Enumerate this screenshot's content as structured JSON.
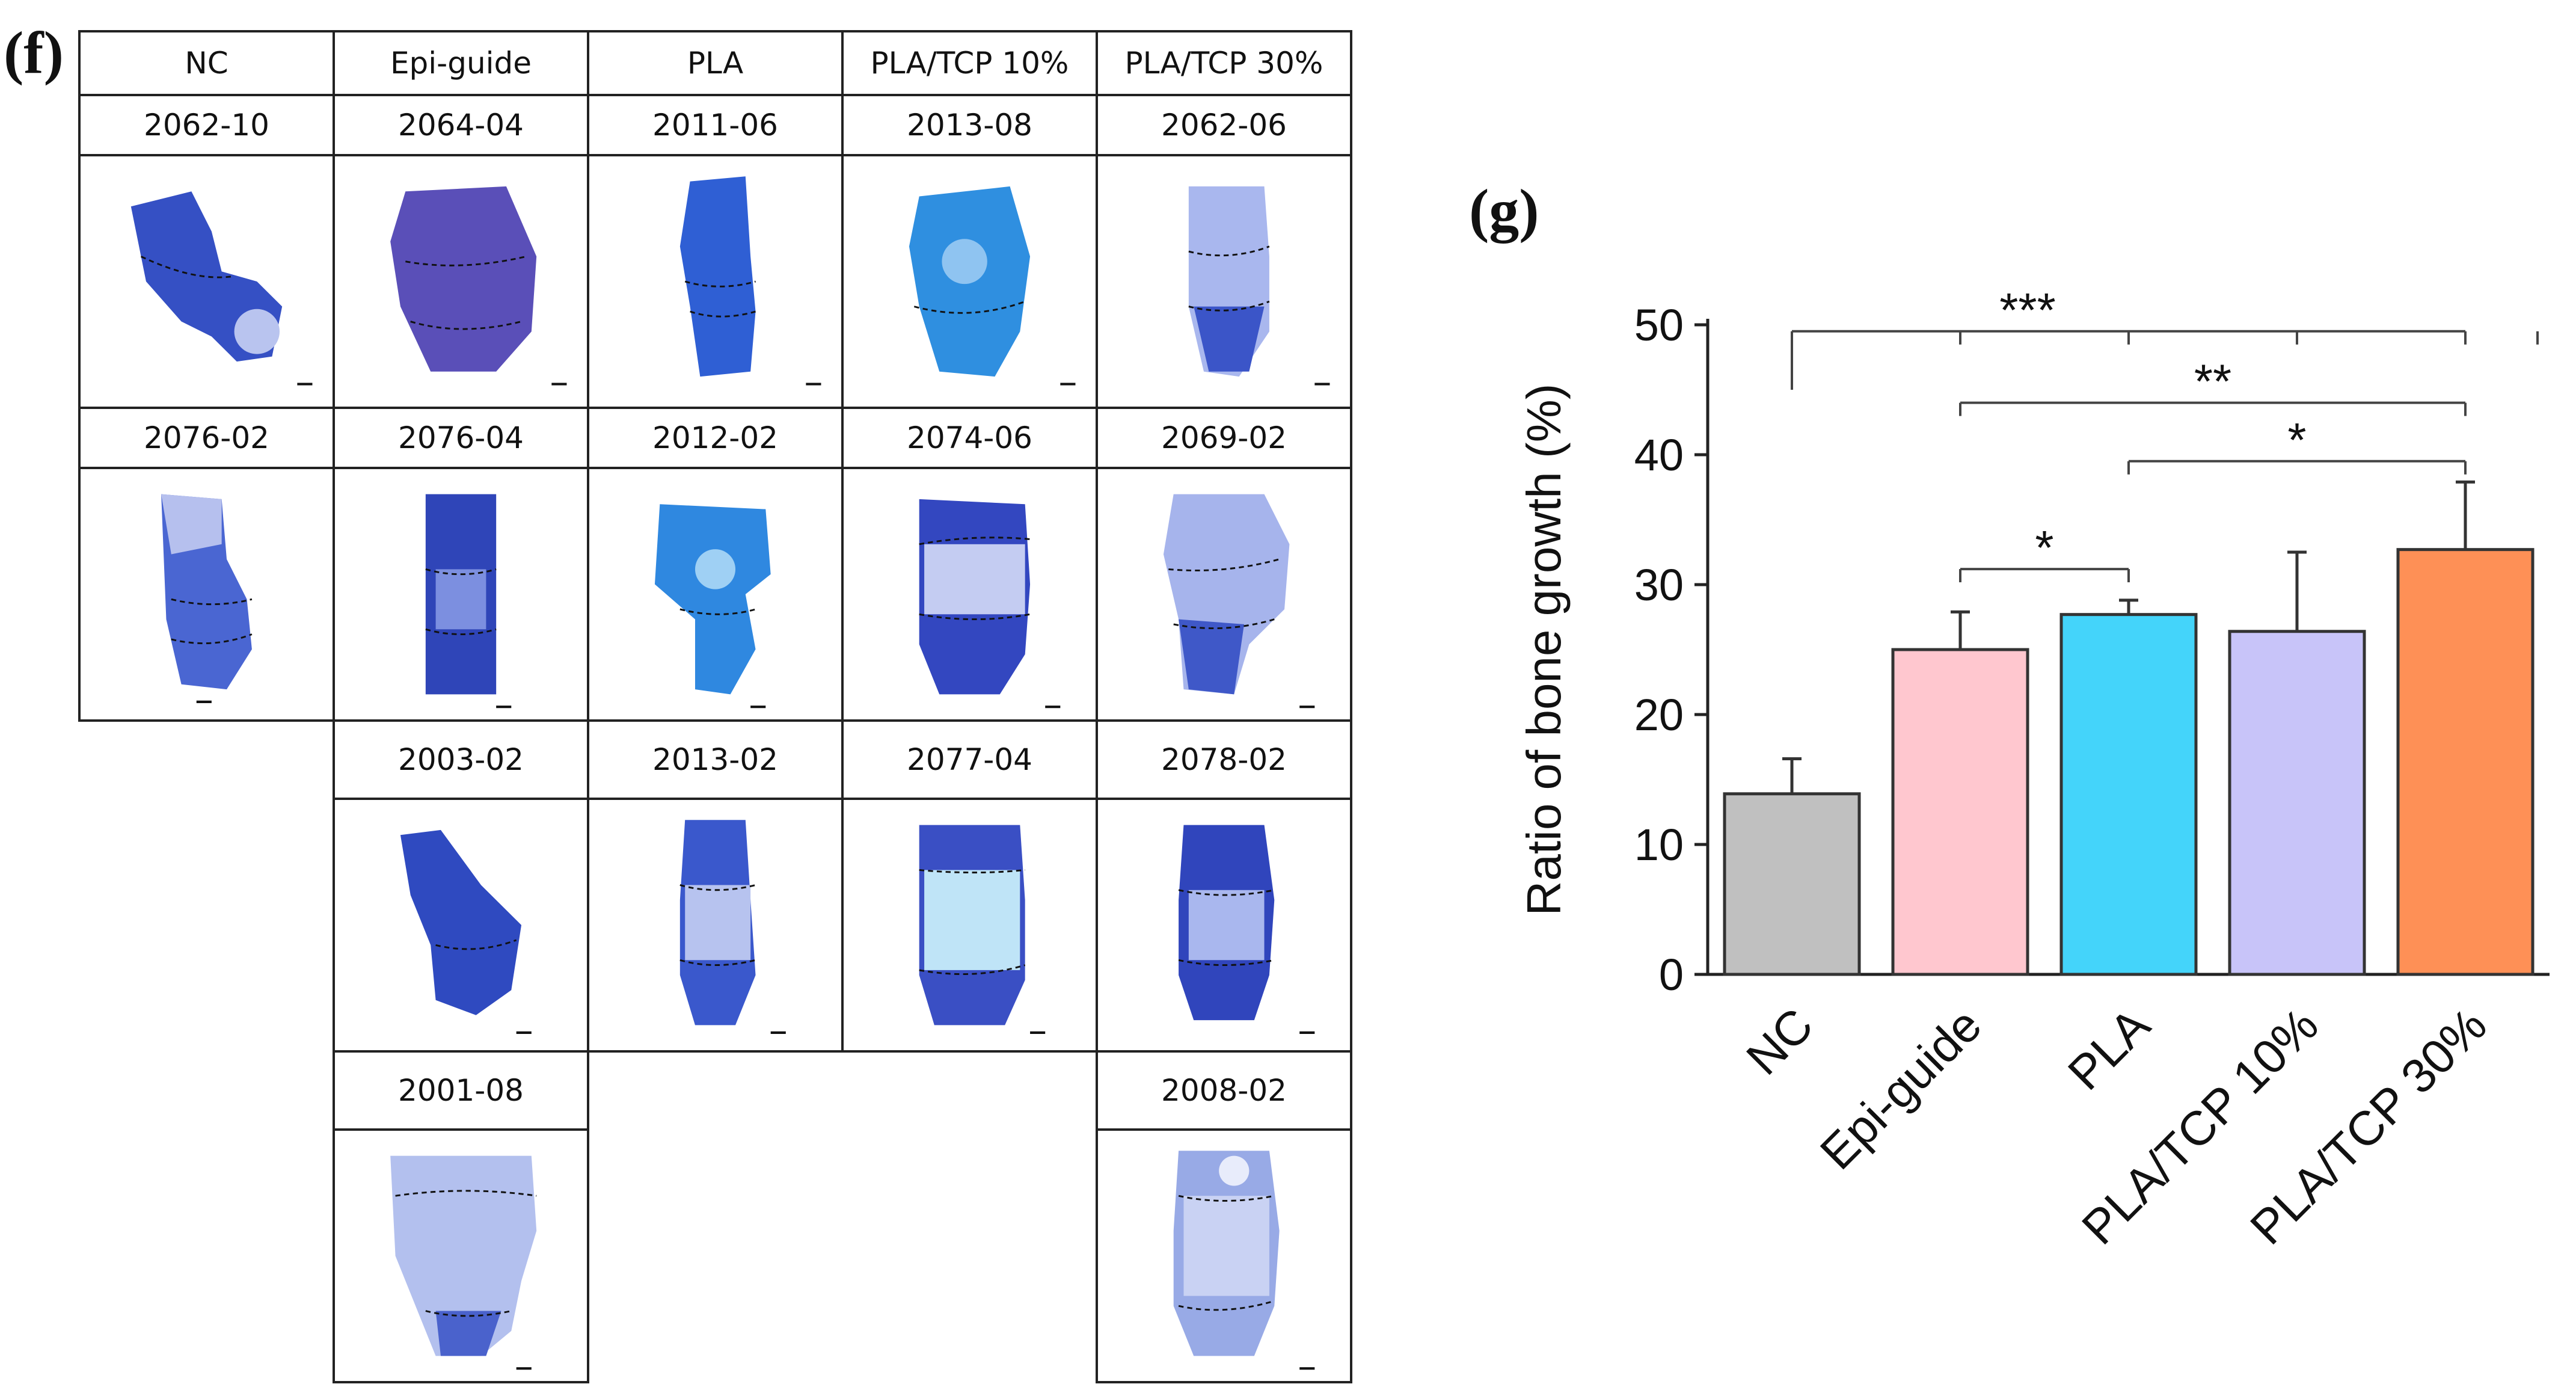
{
  "panels": {
    "f_label": "(f)",
    "g_label": "(g)"
  },
  "table": {
    "headers": [
      "NC",
      "Epi-guide",
      "PLA",
      "PLA/TCP 10%",
      "PLA/TCP 30%"
    ],
    "rows": [
      [
        "2062-10",
        "2064-04",
        "2011-06",
        "2013-08",
        "2062-06"
      ],
      [
        "2076-02",
        "2076-04",
        "2012-02",
        "2074-06",
        "2069-02"
      ],
      [
        "",
        "2003-02",
        "2013-02",
        "2077-04",
        "2078-02"
      ],
      [
        "",
        "2001-08",
        "",
        "",
        "2008-02"
      ]
    ]
  },
  "colors": {
    "stain_dark": "#2f3fb8",
    "stain_mid": "#4f6fd6",
    "stain_light": "#a9b7ee",
    "stain_cyan": "#2f8fe0"
  },
  "chart_data": {
    "type": "bar",
    "title": "",
    "xlabel": "",
    "ylabel": "Ratio of bone growth (%)",
    "ylim": [
      0,
      50
    ],
    "yticks": [
      0,
      10,
      20,
      30,
      40,
      50
    ],
    "categories": [
      "NC",
      "Epi-guide",
      "PLA",
      "PLA/TCP 10%",
      "PLA/TCP 30%"
    ],
    "values": [
      13.9,
      25.0,
      27.7,
      26.4,
      32.7
    ],
    "errors": [
      2.7,
      2.9,
      1.1,
      6.1,
      5.2
    ],
    "colors": [
      "#c0c0c0",
      "#ffc7cf",
      "#44d4fa",
      "#c8c4f9",
      "#fe9056"
    ],
    "significance": [
      {
        "label": "***",
        "from": 0,
        "to": [
          1,
          2,
          3,
          4
        ],
        "y": 49.5
      },
      {
        "label": "**",
        "from": 1,
        "to": [
          4
        ],
        "y": 44.0
      },
      {
        "label": "*",
        "from": 2,
        "to": [
          4
        ],
        "y": 39.5
      },
      {
        "label": "*",
        "from": 1,
        "to": [
          2
        ],
        "y": 31.2
      }
    ]
  }
}
